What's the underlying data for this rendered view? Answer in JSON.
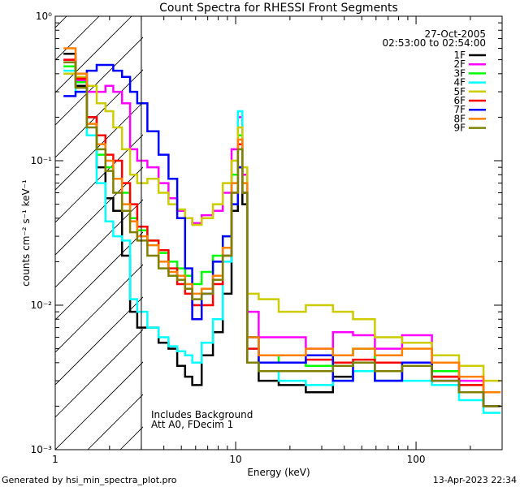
{
  "chart_data": {
    "type": "line",
    "title": "Count Spectra for RHESSI Front Segments",
    "xlabel": "Energy (keV)",
    "ylabel": "counts cm⁻² s⁻¹ keV⁻¹",
    "xscale": "log",
    "yscale": "log",
    "xlim": [
      1,
      300
    ],
    "ylim": [
      0.001,
      1
    ],
    "x_ticks": [
      "1",
      "10",
      "100"
    ],
    "y_ticks": [
      "10⁻³",
      "10⁻²",
      "10⁻¹",
      "10⁰"
    ],
    "date": "27-Oct-2005",
    "time_range": "02:53:00 to 02:54:00",
    "hatched_region_max_keV": 3,
    "annotations": [
      "Includes Background",
      "Att A0, FDecim 1"
    ],
    "series": [
      {
        "name": "1F",
        "color": "#000000",
        "points": [
          [
            1.2,
            0.55
          ],
          [
            1.4,
            0.33
          ],
          [
            1.6,
            0.2
          ],
          [
            1.8,
            0.09
          ],
          [
            2.0,
            0.055
          ],
          [
            2.2,
            0.045
          ],
          [
            2.5,
            0.022
          ],
          [
            2.7,
            0.009
          ],
          [
            3.0,
            0.007
          ],
          [
            3.5,
            0.007
          ],
          [
            4.0,
            0.0055
          ],
          [
            4.5,
            0.005
          ],
          [
            5.0,
            0.0038
          ],
          [
            5.5,
            0.0032
          ],
          [
            6.0,
            0.0028
          ],
          [
            7.0,
            0.0045
          ],
          [
            8.0,
            0.0065
          ],
          [
            9.0,
            0.012
          ],
          [
            10.0,
            0.045
          ],
          [
            10.6,
            0.09
          ],
          [
            11.2,
            0.05
          ],
          [
            12.0,
            0.004
          ],
          [
            15,
            0.003
          ],
          [
            20,
            0.0028
          ],
          [
            30,
            0.0025
          ],
          [
            40,
            0.0032
          ],
          [
            50,
            0.0035
          ],
          [
            70,
            0.003
          ],
          [
            100,
            0.0038
          ],
          [
            150,
            0.0032
          ],
          [
            200,
            0.0025
          ],
          [
            280,
            0.002
          ]
        ]
      },
      {
        "name": "2F",
        "color": "#ff00ff",
        "points": [
          [
            1.2,
            0.5
          ],
          [
            1.4,
            0.36
          ],
          [
            1.6,
            0.3
          ],
          [
            1.8,
            0.3
          ],
          [
            2.0,
            0.33
          ],
          [
            2.2,
            0.3
          ],
          [
            2.5,
            0.25
          ],
          [
            2.7,
            0.12
          ],
          [
            3.0,
            0.1
          ],
          [
            3.5,
            0.09
          ],
          [
            4.0,
            0.07
          ],
          [
            4.5,
            0.055
          ],
          [
            5.0,
            0.045
          ],
          [
            5.5,
            0.04
          ],
          [
            6.0,
            0.037
          ],
          [
            7.0,
            0.042
          ],
          [
            8.0,
            0.045
          ],
          [
            9.0,
            0.06
          ],
          [
            10.0,
            0.12
          ],
          [
            10.6,
            0.2
          ],
          [
            11.2,
            0.08
          ],
          [
            12.0,
            0.009
          ],
          [
            15,
            0.006
          ],
          [
            20,
            0.006
          ],
          [
            30,
            0.005
          ],
          [
            40,
            0.0065
          ],
          [
            50,
            0.0062
          ],
          [
            70,
            0.005
          ],
          [
            100,
            0.0062
          ],
          [
            150,
            0.004
          ],
          [
            200,
            0.003
          ],
          [
            280,
            0.0025
          ]
        ]
      },
      {
        "name": "3F",
        "color": "#00ff00",
        "points": [
          [
            1.2,
            0.45
          ],
          [
            1.4,
            0.35
          ],
          [
            1.6,
            0.15
          ],
          [
            1.8,
            0.11
          ],
          [
            2.0,
            0.09
          ],
          [
            2.2,
            0.075
          ],
          [
            2.5,
            0.06
          ],
          [
            2.7,
            0.04
          ],
          [
            3.0,
            0.033
          ],
          [
            3.5,
            0.028
          ],
          [
            4.0,
            0.023
          ],
          [
            4.5,
            0.02
          ],
          [
            5.0,
            0.018
          ],
          [
            5.5,
            0.016
          ],
          [
            6.0,
            0.014
          ],
          [
            7.0,
            0.017
          ],
          [
            8.0,
            0.022
          ],
          [
            9.0,
            0.03
          ],
          [
            10.0,
            0.08
          ],
          [
            10.6,
            0.15
          ],
          [
            11.2,
            0.07
          ],
          [
            12.0,
            0.006
          ],
          [
            15,
            0.0045
          ],
          [
            20,
            0.004
          ],
          [
            30,
            0.0038
          ],
          [
            40,
            0.0045
          ],
          [
            50,
            0.005
          ],
          [
            70,
            0.004
          ],
          [
            100,
            0.004
          ],
          [
            150,
            0.0035
          ],
          [
            200,
            0.0028
          ],
          [
            280,
            0.002
          ]
        ]
      },
      {
        "name": "4F",
        "color": "#00ffff",
        "points": [
          [
            1.2,
            0.42
          ],
          [
            1.4,
            0.3
          ],
          [
            1.6,
            0.15
          ],
          [
            1.8,
            0.07
          ],
          [
            2.0,
            0.038
          ],
          [
            2.2,
            0.03
          ],
          [
            2.5,
            0.028
          ],
          [
            2.7,
            0.011
          ],
          [
            3.0,
            0.009
          ],
          [
            3.5,
            0.007
          ],
          [
            4.0,
            0.006
          ],
          [
            4.5,
            0.0052
          ],
          [
            5.0,
            0.0048
          ],
          [
            5.5,
            0.0045
          ],
          [
            6.0,
            0.004
          ],
          [
            7.0,
            0.0055
          ],
          [
            8.0,
            0.008
          ],
          [
            9.0,
            0.02
          ],
          [
            10.0,
            0.07
          ],
          [
            10.6,
            0.22
          ],
          [
            11.2,
            0.06
          ],
          [
            12.0,
            0.005
          ],
          [
            15,
            0.0035
          ],
          [
            20,
            0.003
          ],
          [
            30,
            0.0028
          ],
          [
            40,
            0.003
          ],
          [
            50,
            0.0035
          ],
          [
            70,
            0.003
          ],
          [
            100,
            0.003
          ],
          [
            150,
            0.0028
          ],
          [
            200,
            0.0022
          ],
          [
            280,
            0.0018
          ]
        ]
      },
      {
        "name": "5F",
        "color": "#cccc00",
        "points": [
          [
            1.2,
            0.4
          ],
          [
            1.4,
            0.38
          ],
          [
            1.6,
            0.33
          ],
          [
            1.8,
            0.25
          ],
          [
            2.0,
            0.22
          ],
          [
            2.2,
            0.17
          ],
          [
            2.5,
            0.12
          ],
          [
            2.7,
            0.08
          ],
          [
            3.0,
            0.07
          ],
          [
            3.5,
            0.075
          ],
          [
            4.0,
            0.06
          ],
          [
            4.5,
            0.05
          ],
          [
            5.0,
            0.046
          ],
          [
            5.5,
            0.04
          ],
          [
            6.0,
            0.036
          ],
          [
            7.0,
            0.04
          ],
          [
            8.0,
            0.05
          ],
          [
            9.0,
            0.07
          ],
          [
            10.0,
            0.1
          ],
          [
            10.6,
            0.17
          ],
          [
            11.2,
            0.09
          ],
          [
            12.0,
            0.012
          ],
          [
            15,
            0.011
          ],
          [
            20,
            0.009
          ],
          [
            30,
            0.01
          ],
          [
            40,
            0.009
          ],
          [
            50,
            0.008
          ],
          [
            70,
            0.006
          ],
          [
            100,
            0.0055
          ],
          [
            150,
            0.0045
          ],
          [
            200,
            0.0038
          ],
          [
            280,
            0.003
          ]
        ]
      },
      {
        "name": "6F",
        "color": "#ff0000",
        "points": [
          [
            1.2,
            0.5
          ],
          [
            1.4,
            0.37
          ],
          [
            1.6,
            0.2
          ],
          [
            1.8,
            0.15
          ],
          [
            2.0,
            0.11
          ],
          [
            2.2,
            0.1
          ],
          [
            2.5,
            0.07
          ],
          [
            2.7,
            0.05
          ],
          [
            3.0,
            0.035
          ],
          [
            3.5,
            0.028
          ],
          [
            4.0,
            0.024
          ],
          [
            4.5,
            0.018
          ],
          [
            5.0,
            0.014
          ],
          [
            5.5,
            0.012
          ],
          [
            6.0,
            0.01
          ],
          [
            7.0,
            0.01
          ],
          [
            8.0,
            0.014
          ],
          [
            9.0,
            0.022
          ],
          [
            10.0,
            0.06
          ],
          [
            10.6,
            0.13
          ],
          [
            11.2,
            0.06
          ],
          [
            12.0,
            0.005
          ],
          [
            15,
            0.004
          ],
          [
            20,
            0.004
          ],
          [
            30,
            0.0042
          ],
          [
            40,
            0.004
          ],
          [
            50,
            0.0042
          ],
          [
            70,
            0.004
          ],
          [
            100,
            0.004
          ],
          [
            150,
            0.0032
          ],
          [
            200,
            0.0028
          ],
          [
            280,
            0.002
          ]
        ]
      },
      {
        "name": "7F",
        "color": "#0000ff",
        "points": [
          [
            1.2,
            0.28
          ],
          [
            1.4,
            0.3
          ],
          [
            1.6,
            0.42
          ],
          [
            1.8,
            0.46
          ],
          [
            2.0,
            0.46
          ],
          [
            2.2,
            0.42
          ],
          [
            2.5,
            0.38
          ],
          [
            2.7,
            0.3
          ],
          [
            3.0,
            0.25
          ],
          [
            3.5,
            0.16
          ],
          [
            4.0,
            0.11
          ],
          [
            4.5,
            0.075
          ],
          [
            5.0,
            0.04
          ],
          [
            5.5,
            0.018
          ],
          [
            6.0,
            0.008
          ],
          [
            7.0,
            0.012
          ],
          [
            8.0,
            0.02
          ],
          [
            9.0,
            0.03
          ],
          [
            10.0,
            0.05
          ],
          [
            10.6,
            0.09
          ],
          [
            11.2,
            0.06
          ],
          [
            12.0,
            0.006
          ],
          [
            15,
            0.004
          ],
          [
            20,
            0.004
          ],
          [
            30,
            0.0045
          ],
          [
            40,
            0.003
          ],
          [
            50,
            0.004
          ],
          [
            70,
            0.003
          ],
          [
            100,
            0.004
          ],
          [
            150,
            0.003
          ],
          [
            200,
            0.0025
          ],
          [
            280,
            0.002
          ]
        ]
      },
      {
        "name": "8F",
        "color": "#ff8000",
        "points": [
          [
            1.2,
            0.6
          ],
          [
            1.4,
            0.4
          ],
          [
            1.6,
            0.18
          ],
          [
            1.8,
            0.13
          ],
          [
            2.0,
            0.1
          ],
          [
            2.2,
            0.075
          ],
          [
            2.5,
            0.05
          ],
          [
            2.7,
            0.038
          ],
          [
            3.0,
            0.03
          ],
          [
            3.5,
            0.026
          ],
          [
            4.0,
            0.02
          ],
          [
            4.5,
            0.017
          ],
          [
            5.0,
            0.016
          ],
          [
            5.5,
            0.014
          ],
          [
            6.0,
            0.012
          ],
          [
            7.0,
            0.013
          ],
          [
            8.0,
            0.016
          ],
          [
            9.0,
            0.025
          ],
          [
            10.0,
            0.07
          ],
          [
            10.6,
            0.14
          ],
          [
            11.2,
            0.07
          ],
          [
            12.0,
            0.006
          ],
          [
            15,
            0.0045
          ],
          [
            20,
            0.0045
          ],
          [
            30,
            0.005
          ],
          [
            40,
            0.0045
          ],
          [
            50,
            0.005
          ],
          [
            70,
            0.0045
          ],
          [
            100,
            0.005
          ],
          [
            150,
            0.004
          ],
          [
            200,
            0.0032
          ],
          [
            280,
            0.0025
          ]
        ]
      },
      {
        "name": "9F",
        "color": "#808000",
        "points": [
          [
            1.2,
            0.48
          ],
          [
            1.4,
            0.32
          ],
          [
            1.6,
            0.17
          ],
          [
            1.8,
            0.12
          ],
          [
            2.0,
            0.085
          ],
          [
            2.2,
            0.06
          ],
          [
            2.5,
            0.045
          ],
          [
            2.7,
            0.032
          ],
          [
            3.0,
            0.028
          ],
          [
            3.5,
            0.022
          ],
          [
            4.0,
            0.018
          ],
          [
            4.5,
            0.016
          ],
          [
            5.0,
            0.015
          ],
          [
            5.5,
            0.013
          ],
          [
            6.0,
            0.011
          ],
          [
            7.0,
            0.012
          ],
          [
            8.0,
            0.015
          ],
          [
            9.0,
            0.022
          ],
          [
            10.0,
            0.06
          ],
          [
            10.6,
            0.12
          ],
          [
            11.2,
            0.06
          ],
          [
            12.0,
            0.004
          ],
          [
            15,
            0.0035
          ],
          [
            20,
            0.0035
          ],
          [
            30,
            0.0035
          ],
          [
            40,
            0.0038
          ],
          [
            50,
            0.004
          ],
          [
            70,
            0.0035
          ],
          [
            100,
            0.0038
          ],
          [
            150,
            0.003
          ],
          [
            200,
            0.0025
          ],
          [
            280,
            0.002
          ]
        ]
      }
    ]
  },
  "footer": {
    "generated_by": "Generated by hsi_min_spectra_plot.pro",
    "timestamp": "13-Apr-2023 22:34"
  }
}
